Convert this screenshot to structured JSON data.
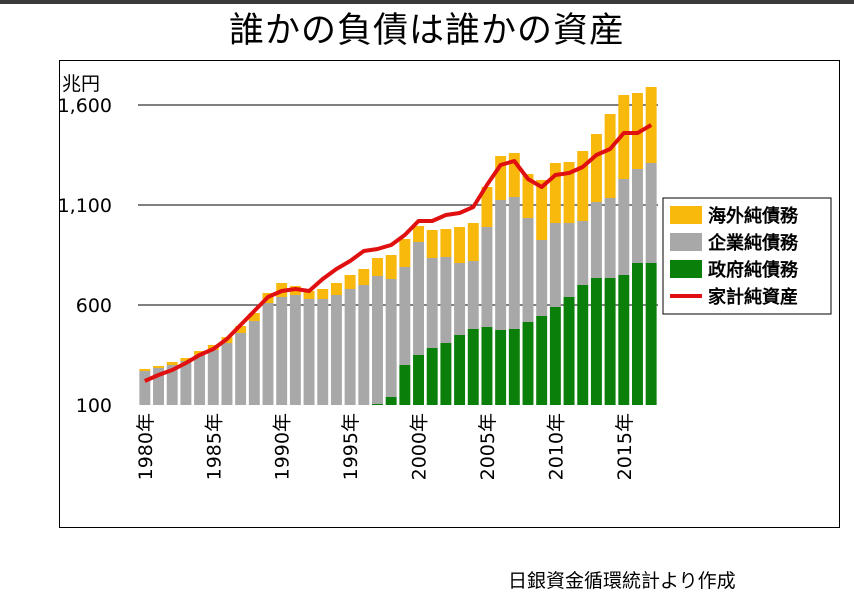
{
  "page": {
    "title": "誰かの負債は誰かの資産",
    "source_note": "日銀資金循環統計より作成"
  },
  "chart_data": {
    "type": "bar",
    "stacked": true,
    "ylabel": "兆円",
    "ylim": [
      100,
      1600
    ],
    "yticks": [
      100,
      600,
      1100,
      1600
    ],
    "ytick_labels": [
      "100",
      "600",
      "1,100",
      "1,600"
    ],
    "grid": true,
    "legend_position": "right",
    "categories": [
      1980,
      1981,
      1982,
      1983,
      1984,
      1985,
      1986,
      1987,
      1988,
      1989,
      1990,
      1991,
      1992,
      1993,
      1994,
      1995,
      1996,
      1997,
      1998,
      1999,
      2000,
      2001,
      2002,
      2003,
      2004,
      2005,
      2006,
      2007,
      2008,
      2009,
      2010,
      2011,
      2012,
      2013,
      2014,
      2015,
      2016,
      2017
    ],
    "xtick_labels": [
      {
        "year": 1980,
        "label": "1980年"
      },
      {
        "year": 1985,
        "label": "1985年"
      },
      {
        "year": 1990,
        "label": "1990年"
      },
      {
        "year": 1995,
        "label": "1995年"
      },
      {
        "year": 2000,
        "label": "2000年"
      },
      {
        "year": 2005,
        "label": "2005年"
      },
      {
        "year": 2010,
        "label": "2010年"
      },
      {
        "year": 2015,
        "label": "2015年"
      }
    ],
    "series": [
      {
        "name": "政府純債務",
        "kind": "bar",
        "color": "#0a800a",
        "values": [
          0,
          0,
          0,
          0,
          0,
          0,
          0,
          0,
          0,
          0,
          0,
          0,
          0,
          0,
          0,
          0,
          0,
          5,
          40,
          200,
          250,
          285,
          310,
          350,
          380,
          390,
          375,
          380,
          415,
          445,
          490,
          540,
          600,
          635,
          635,
          650,
          710,
          710
        ]
      },
      {
        "name": "企業純債務",
        "kind": "bar",
        "color": "#a8a8a8",
        "values": [
          170,
          185,
          200,
          220,
          250,
          275,
          310,
          360,
          420,
          510,
          540,
          550,
          530,
          530,
          550,
          580,
          600,
          640,
          590,
          490,
          565,
          450,
          430,
          360,
          340,
          500,
          650,
          660,
          520,
          380,
          420,
          370,
          320,
          380,
          400,
          480,
          470,
          500
        ]
      },
      {
        "name": "海外純債務",
        "kind": "bar",
        "color": "#f9b80c",
        "values": [
          10,
          10,
          15,
          15,
          20,
          25,
          30,
          35,
          40,
          50,
          70,
          45,
          40,
          50,
          60,
          70,
          80,
          90,
          120,
          140,
          80,
          140,
          140,
          180,
          190,
          200,
          220,
          220,
          220,
          300,
          300,
          305,
          350,
          340,
          420,
          420,
          380,
          380
        ]
      },
      {
        "name": "家計純資産",
        "kind": "line",
        "color": "#e01010",
        "values": [
          220,
          250,
          275,
          310,
          350,
          380,
          430,
          500,
          570,
          640,
          670,
          680,
          670,
          730,
          780,
          820,
          870,
          880,
          900,
          950,
          1020,
          1020,
          1050,
          1060,
          1090,
          1200,
          1300,
          1320,
          1230,
          1190,
          1250,
          1260,
          1290,
          1350,
          1380,
          1460,
          1460,
          1500
        ]
      }
    ]
  }
}
